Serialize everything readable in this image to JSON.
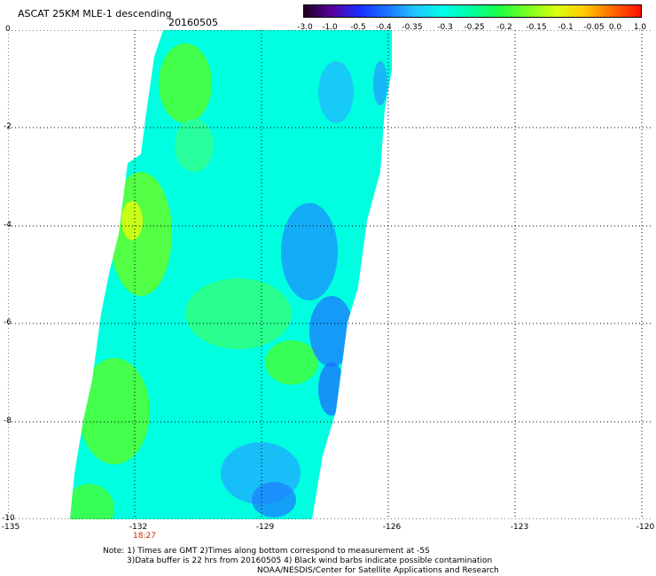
{
  "header": {
    "title": "ASCAT 25KM MLE-1 descending",
    "date": "20160505"
  },
  "colorbar": {
    "labels": [
      "-3.0",
      "-1.0",
      "-0.5",
      "-0.4",
      "-0.35",
      "-0.3",
      "-0.25",
      "-0.2",
      "-0.15",
      "-0.1",
      "-0.05",
      "0.0",
      "1.0"
    ],
    "colors": [
      "#200020",
      "#5a00a0",
      "#1830ff",
      "#1c78ff",
      "#20c8ff",
      "#00ffe8",
      "#00ffa0",
      "#20ff40",
      "#7cff20",
      "#ddff10",
      "#ffc800",
      "#ff6800",
      "#ff1000"
    ]
  },
  "map": {
    "y_ticks": [
      "0",
      "-2",
      "-4",
      "-6",
      "-8",
      "-10"
    ],
    "x_ticks": [
      "-135",
      "-132",
      "-129",
      "-126",
      "-123",
      "-120"
    ],
    "time_label": "18:27",
    "lon_range": [
      -135,
      -120
    ],
    "lat_range": [
      -10,
      0
    ]
  },
  "notes": {
    "line1": "Note: 1) Times are GMT 2)Times along bottom correspond to measurement at -5S",
    "line2": "3)Data buffer is 22 hrs from 20160505 4) Black wind barbs indicate possible contamination",
    "line3": "NOAA/NESDIS/Center for Satellite Applications and Research"
  }
}
